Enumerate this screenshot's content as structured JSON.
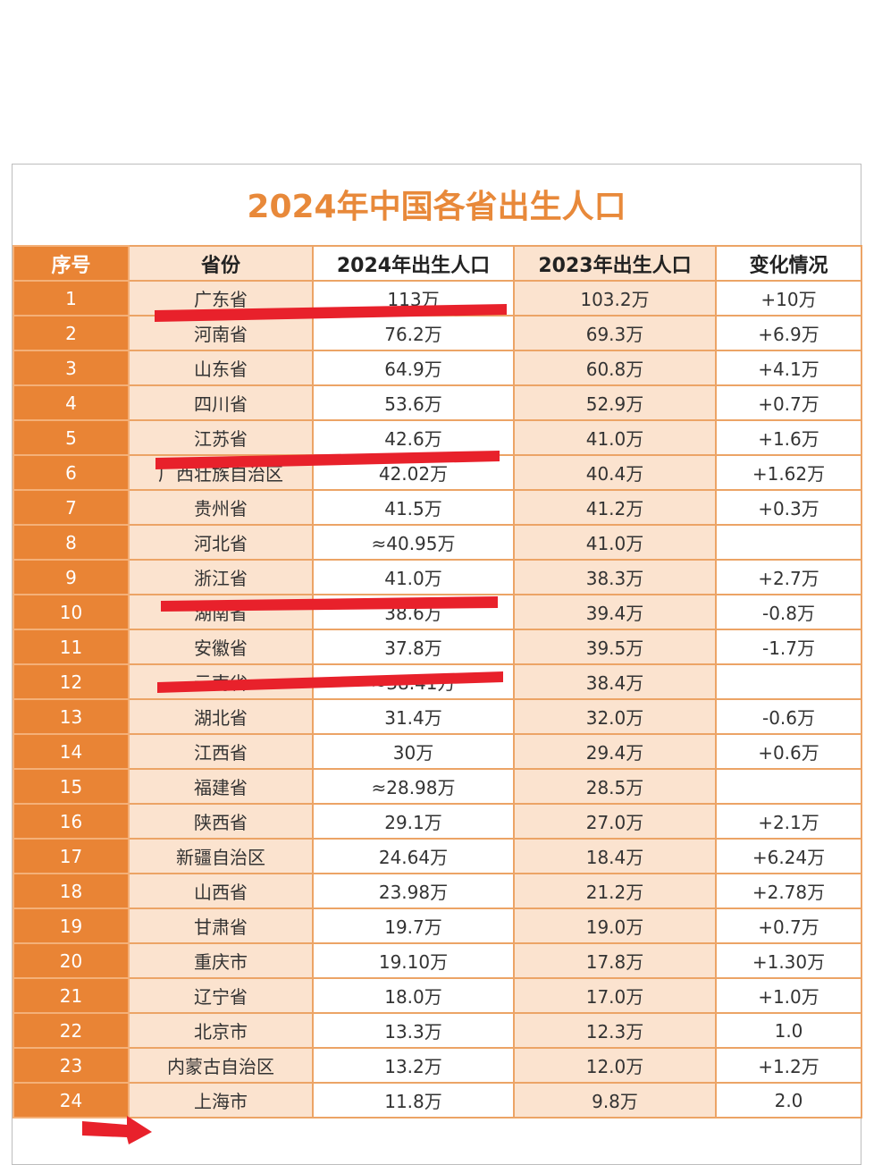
{
  "title": "2024年中国各省出生人口",
  "headers": [
    "序号",
    "省份",
    "2024年出生人口",
    "2023年出生人口",
    "变化情况"
  ],
  "rows": [
    [
      "1",
      "广东省",
      "113万",
      "103.2万",
      "+10万"
    ],
    [
      "2",
      "河南省",
      "76.2万",
      "69.3万",
      "+6.9万"
    ],
    [
      "3",
      "山东省",
      "64.9万",
      "60.8万",
      "+4.1万"
    ],
    [
      "4",
      "四川省",
      "53.6万",
      "52.9万",
      "+0.7万"
    ],
    [
      "5",
      "江苏省",
      "42.6万",
      "41.0万",
      "+1.6万"
    ],
    [
      "6",
      "广西壮族自治区",
      "42.02万",
      "40.4万",
      "+1.62万"
    ],
    [
      "7",
      "贵州省",
      "41.5万",
      "41.2万",
      "+0.3万"
    ],
    [
      "8",
      "河北省",
      "≈40.95万",
      "41.0万",
      ""
    ],
    [
      "9",
      "浙江省",
      "41.0万",
      "38.3万",
      "+2.7万"
    ],
    [
      "10",
      "湖南省",
      "38.6万",
      "39.4万",
      "-0.8万"
    ],
    [
      "11",
      "安徽省",
      "37.8万",
      "39.5万",
      "-1.7万"
    ],
    [
      "12",
      "云南省",
      "≈38.41万",
      "38.4万",
      ""
    ],
    [
      "13",
      "湖北省",
      "31.4万",
      "32.0万",
      "-0.6万"
    ],
    [
      "14",
      "江西省",
      "30万",
      "29.4万",
      "+0.6万"
    ],
    [
      "15",
      "福建省",
      "≈28.98万",
      "28.5万",
      ""
    ],
    [
      "16",
      "陕西省",
      "29.1万",
      "27.0万",
      "+2.1万"
    ],
    [
      "17",
      "新疆自治区",
      "24.64万",
      "18.4万",
      "+6.24万"
    ],
    [
      "18",
      "山西省",
      "23.98万",
      "21.2万",
      "+2.78万"
    ],
    [
      "19",
      "甘肃省",
      "19.7万",
      "19.0万",
      "+0.7万"
    ],
    [
      "20",
      "重庆市",
      "19.10万",
      "17.8万",
      "+1.30万"
    ],
    [
      "21",
      "辽宁省",
      "18.0万",
      "17.0万",
      "+1.0万"
    ],
    [
      "22",
      "北京市",
      "13.3万",
      "12.3万",
      "1.0"
    ],
    [
      "23",
      "内蒙古自治区",
      "13.2万",
      "12.0万",
      "+1.2万"
    ],
    [
      "24",
      "上海市",
      "11.8万",
      "9.8万",
      "2.0"
    ]
  ],
  "colors": {
    "accent": "#e98435",
    "title": "#e8893a",
    "stripe": "#fbe3cf",
    "mark": "#e8212b"
  }
}
